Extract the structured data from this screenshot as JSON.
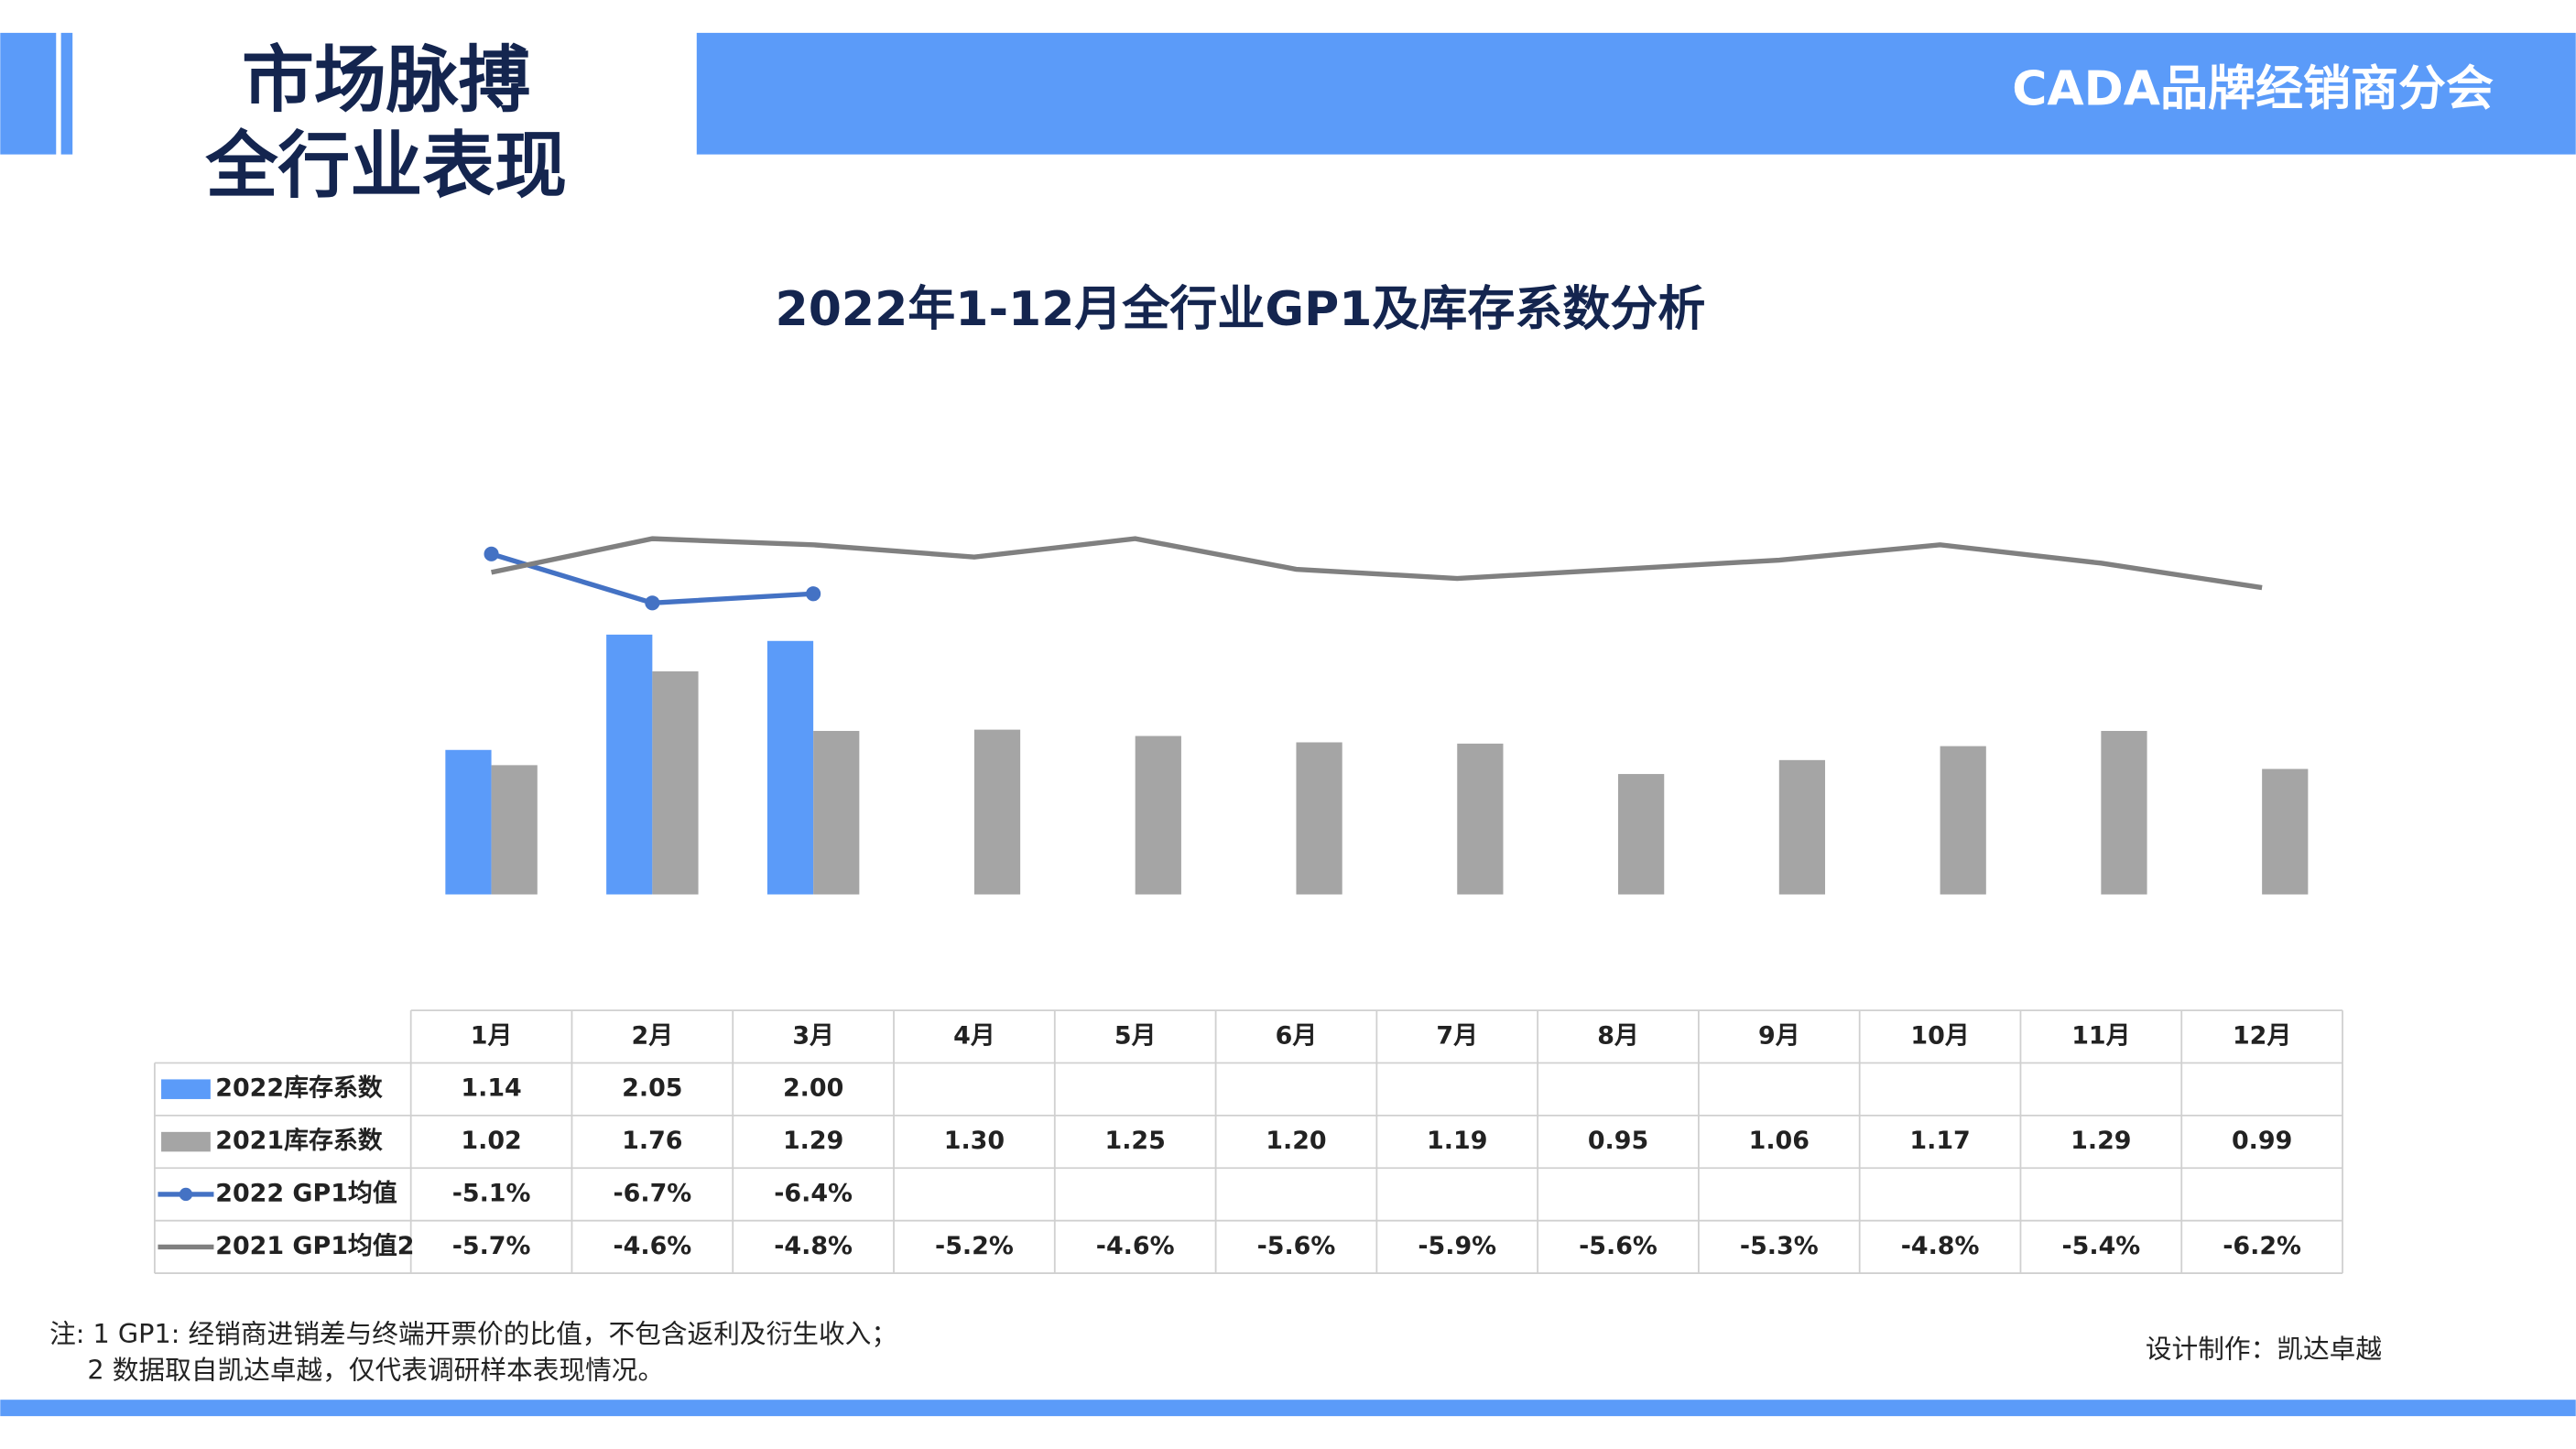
{
  "header": {
    "title_lines": [
      "市场脉搏",
      "全行业表现"
    ],
    "brand": "CADA品牌经销商分会"
  },
  "chart_data": {
    "type": "bar-line-table",
    "title": "2022年1-12月全行业GP1及库存系数分析",
    "categories": [
      "1月",
      "2月",
      "3月",
      "4月",
      "5月",
      "6月",
      "7月",
      "8月",
      "9月",
      "10月",
      "11月",
      "12月"
    ],
    "ylim": [
      -0.5,
      3.0
    ],
    "y2lim": [
      -18.3,
      -3.8
    ],
    "series": [
      {
        "name": "2022库存系数",
        "type": "bar",
        "color": "#5b9bf9",
        "values": [
          1.14,
          2.05,
          2.0,
          null,
          null,
          null,
          null,
          null,
          null,
          null,
          null,
          null
        ],
        "value_labels": [
          "1.14",
          "2.05",
          "2.00",
          null,
          null,
          null,
          null,
          null,
          null,
          null,
          null,
          null
        ]
      },
      {
        "name": "2021库存系数",
        "type": "bar",
        "color": "#a5a5a5",
        "values": [
          1.02,
          1.76,
          1.29,
          1.3,
          1.25,
          1.2,
          1.19,
          0.95,
          1.06,
          1.17,
          1.29,
          0.99
        ],
        "value_labels": [
          "1.02",
          "1.76",
          "1.29",
          "1.30",
          "1.25",
          "1.20",
          "1.19",
          "0.95",
          "1.06",
          "1.17",
          "1.29",
          "0.99"
        ]
      },
      {
        "name": "2022 GP1均值",
        "type": "line",
        "axis": "y2",
        "color": "#4472c4",
        "marker": true,
        "values": [
          -5.1,
          -6.7,
          -6.4,
          null,
          null,
          null,
          null,
          null,
          null,
          null,
          null,
          null
        ],
        "value_labels": [
          "-5.1%",
          "-6.7%",
          "-6.4%",
          null,
          null,
          null,
          null,
          null,
          null,
          null,
          null,
          null
        ]
      },
      {
        "name": "2021 GP1均值2",
        "type": "line",
        "axis": "y2",
        "color": "#808080",
        "marker": false,
        "values": [
          -5.7,
          -4.6,
          -4.8,
          -5.2,
          -4.6,
          -5.6,
          -5.9,
          -5.6,
          -5.3,
          -4.8,
          -5.4,
          -6.2
        ],
        "value_labels": [
          "-5.7%",
          "-4.6%",
          "-4.8%",
          "-5.2%",
          "-4.6%",
          "-5.6%",
          "-5.9%",
          "-5.6%",
          "-5.3%",
          "-4.8%",
          "-5.4%",
          "-6.2%"
        ]
      }
    ]
  },
  "notes": [
    "注: 1  GP1: 经销商进销差与终端开票价的比值，不包含返利及衍生收入；",
    "2 数据取自凯达卓越，仅代表调研样本表现情况。"
  ],
  "credit": "设计制作：凯达卓越"
}
